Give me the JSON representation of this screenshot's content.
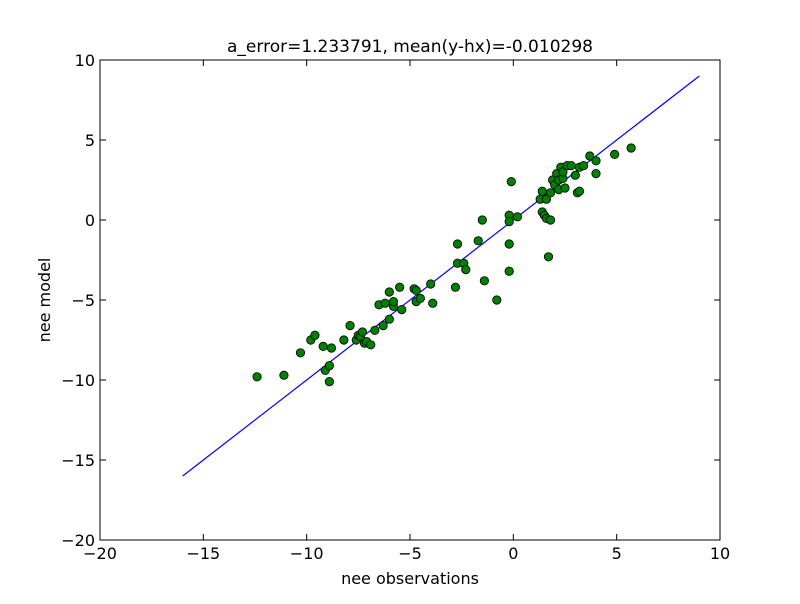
{
  "chart_data": {
    "type": "scatter",
    "title": "a_error=1.233791, mean(y-hx)=-0.010298",
    "xlabel": "nee observations",
    "ylabel": "nee model",
    "xlim": [
      -20,
      10
    ],
    "ylim": [
      -20,
      10
    ],
    "x_ticks": [
      -20,
      -15,
      -10,
      -5,
      0,
      5,
      10
    ],
    "y_ticks": [
      -20,
      -15,
      -10,
      -5,
      0,
      5,
      10
    ],
    "x_tick_labels": [
      "−20",
      "−15",
      "−10",
      "−5",
      "0",
      "5",
      "10"
    ],
    "y_tick_labels": [
      "−20",
      "−15",
      "−10",
      "−5",
      "0",
      "5",
      "10"
    ],
    "grid": false,
    "colors": {
      "points": "#008000",
      "point_edge": "#000000",
      "line": "#0000ff"
    },
    "series": [
      {
        "type": "line",
        "x": [
          -16,
          9
        ],
        "y": [
          -16,
          9
        ]
      },
      {
        "type": "scatter",
        "points": [
          [
            -12.4,
            -9.8
          ],
          [
            -11.1,
            -9.7
          ],
          [
            -10.3,
            -8.3
          ],
          [
            -9.8,
            -7.5
          ],
          [
            -9.6,
            -7.2
          ],
          [
            -9.2,
            -7.9
          ],
          [
            -9.1,
            -9.4
          ],
          [
            -8.9,
            -10.1
          ],
          [
            -8.9,
            -9.1
          ],
          [
            -8.8,
            -8.0
          ],
          [
            -8.2,
            -7.5
          ],
          [
            -7.9,
            -6.6
          ],
          [
            -7.6,
            -7.5
          ],
          [
            -7.5,
            -7.2
          ],
          [
            -7.4,
            -7.3
          ],
          [
            -7.3,
            -7.0
          ],
          [
            -7.2,
            -7.7
          ],
          [
            -7.1,
            -7.6
          ],
          [
            -6.9,
            -7.8
          ],
          [
            -6.7,
            -6.9
          ],
          [
            -6.5,
            -5.3
          ],
          [
            -6.3,
            -6.6
          ],
          [
            -6.2,
            -5.2
          ],
          [
            -6.0,
            -6.2
          ],
          [
            -6.0,
            -4.5
          ],
          [
            -5.8,
            -5.4
          ],
          [
            -5.8,
            -5.1
          ],
          [
            -5.5,
            -4.2
          ],
          [
            -5.4,
            -5.6
          ],
          [
            -4.8,
            -4.3
          ],
          [
            -4.7,
            -5.1
          ],
          [
            -4.7,
            -4.4
          ],
          [
            -4.5,
            -4.9
          ],
          [
            -4.0,
            -4.0
          ],
          [
            -3.9,
            -5.2
          ],
          [
            -2.8,
            -4.2
          ],
          [
            -2.7,
            -1.5
          ],
          [
            -2.7,
            -2.7
          ],
          [
            -2.4,
            -2.7
          ],
          [
            -2.3,
            -3.1
          ],
          [
            -1.7,
            -1.3
          ],
          [
            -1.5,
            0.0
          ],
          [
            -1.4,
            -3.8
          ],
          [
            -0.8,
            -5.0
          ],
          [
            -0.2,
            -1.5
          ],
          [
            -0.2,
            0.3
          ],
          [
            -0.2,
            -3.2
          ],
          [
            -0.2,
            -0.1
          ],
          [
            -0.1,
            2.4
          ],
          [
            0.2,
            0.2
          ],
          [
            1.3,
            1.3
          ],
          [
            1.4,
            0.5
          ],
          [
            1.4,
            1.8
          ],
          [
            1.5,
            0.3
          ],
          [
            1.6,
            1.3
          ],
          [
            1.6,
            0.1
          ],
          [
            1.7,
            -2.3
          ],
          [
            1.8,
            0.0
          ],
          [
            1.8,
            1.7
          ],
          [
            1.9,
            2.5
          ],
          [
            2.0,
            2.2
          ],
          [
            2.1,
            2.9
          ],
          [
            2.2,
            2.5
          ],
          [
            2.2,
            1.9
          ],
          [
            2.3,
            3.3
          ],
          [
            2.4,
            2.6
          ],
          [
            2.4,
            3.0
          ],
          [
            2.5,
            2.0
          ],
          [
            2.6,
            3.4
          ],
          [
            2.8,
            3.4
          ],
          [
            3.0,
            2.8
          ],
          [
            3.2,
            3.3
          ],
          [
            3.1,
            1.7
          ],
          [
            3.2,
            1.8
          ],
          [
            3.4,
            3.4
          ],
          [
            3.7,
            4.0
          ],
          [
            4.0,
            3.7
          ],
          [
            4.0,
            2.9
          ],
          [
            4.9,
            4.1
          ],
          [
            5.7,
            4.5
          ]
        ]
      }
    ]
  }
}
